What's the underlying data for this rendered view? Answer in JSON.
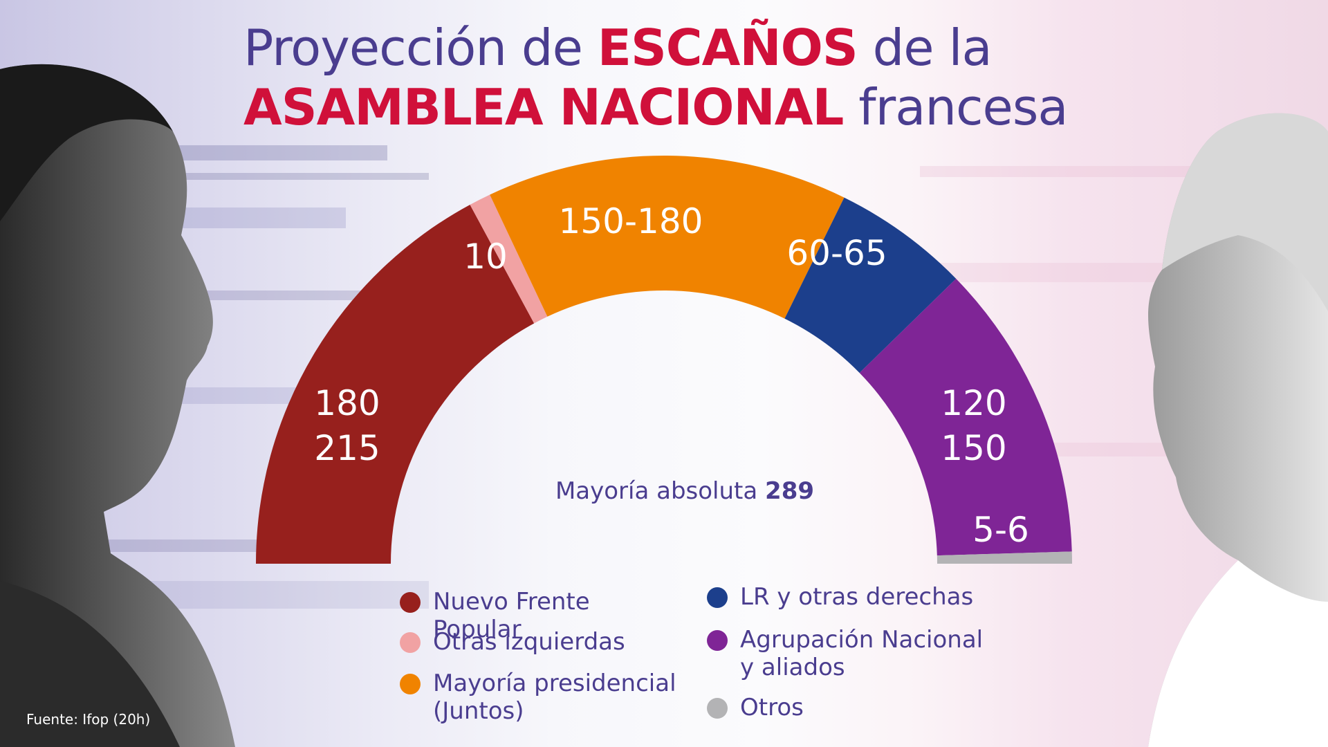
{
  "title": {
    "prefix": "Proyección de ",
    "highlight1": "ESCAÑOS",
    "middle": " de la",
    "highlight2": "ASAMBLEA NACIONAL",
    "suffix": " francesa"
  },
  "majority": {
    "label": "Mayoría absoluta ",
    "value": "289"
  },
  "source": "Fuente: Ifop (20h)",
  "colors": {
    "title": "#4a3d8f",
    "accent": "#d0103a"
  },
  "chart_data": {
    "type": "pie",
    "total": 577,
    "slices": [
      {
        "name": "Nuevo Frente Popular",
        "label": "180\n215",
        "value": 197.5,
        "color": "#97201d"
      },
      {
        "name": "Otras izquierdas",
        "label": "10",
        "value": 10,
        "color": "#f1a2a3"
      },
      {
        "name": "Mayoría presidencial\n(Juntos)",
        "label": "150-180",
        "value": 165,
        "color": "#f08300"
      },
      {
        "name": "LR y otras derechas",
        "label": "60-65",
        "value": 62.5,
        "color": "#1c3f8c"
      },
      {
        "name": "Agrupación Nacional\ny aliados",
        "label": "120\n150",
        "value": 136.5,
        "color": "#7f2596"
      },
      {
        "name": "Otros",
        "label": "5-6",
        "value": 5.5,
        "color": "#b3b3b5"
      }
    ]
  },
  "legend": {
    "left": [
      {
        "name": "Nuevo Frente Popular",
        "color": "#97201d"
      },
      {
        "name": "Otras izquierdas",
        "color": "#f1a2a3"
      },
      {
        "name": "Mayoría presidencial\n(Juntos)",
        "color": "#f08300"
      }
    ],
    "right": [
      {
        "name": "LR y otras derechas",
        "color": "#1c3f8c"
      },
      {
        "name": "Agrupación Nacional\ny aliados",
        "color": "#7f2596"
      },
      {
        "name": "Otros",
        "color": "#b3b3b5"
      }
    ]
  }
}
